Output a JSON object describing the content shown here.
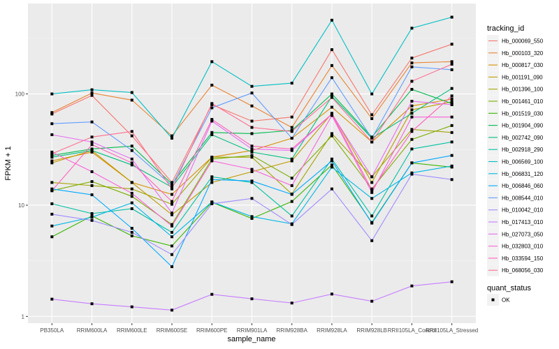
{
  "chart_data": {
    "type": "line",
    "title": "",
    "xlabel": "sample_name",
    "ylabel": "FPKM + 1",
    "yscale": "log10",
    "ylim": [
      0.87,
      650
    ],
    "yticks": [
      1,
      10,
      100
    ],
    "ytick_labels": [
      "1",
      "10",
      "100"
    ],
    "grid": true,
    "legend_position": "right",
    "categories": [
      "PB350LA",
      "RRIM600LA",
      "RRIM600LE",
      "RRIM600SE",
      "RRIM600PE",
      "RRIM901LA",
      "RRIM928BA",
      "RRIM928LA",
      "RRIM928LB",
      "RRII105LA_Control",
      "RRII105LA_Stressed"
    ],
    "legend_color_title": "tracking_id",
    "legend_shape_title": "quant_status",
    "legend_shape_items": [
      "OK"
    ],
    "series": [
      {
        "name": "Hb_000069_550",
        "color": "#F8766D",
        "values": [
          66,
          97,
          42,
          16,
          80,
          57,
          62,
          250,
          65,
          210,
          280
        ]
      },
      {
        "name": "Hb_000103_320",
        "color": "#EA8331",
        "values": [
          68,
          102,
          88,
          42,
          120,
          78,
          50,
          180,
          60,
          190,
          195
        ]
      },
      {
        "name": "Hb_000817_030",
        "color": "#D89000",
        "values": [
          25,
          30,
          16,
          12.5,
          27,
          31,
          40,
          76,
          37,
          78,
          90
        ]
      },
      {
        "name": "Hb_001191_090",
        "color": "#C09B00",
        "values": [
          24,
          31,
          16,
          8.2,
          16,
          20,
          25,
          67,
          16,
          72,
          85
        ]
      },
      {
        "name": "Hb_001396_100",
        "color": "#A3A500",
        "values": [
          16,
          15,
          14,
          10.2,
          27,
          27,
          12.6,
          44,
          18,
          48,
          45
        ]
      },
      {
        "name": "Hb_001461_010",
        "color": "#7CAE00",
        "values": [
          13.5,
          16.3,
          12,
          6.7,
          26,
          28,
          17.5,
          42,
          14,
          39,
          52
        ]
      },
      {
        "name": "Hb_001519_030",
        "color": "#39B600",
        "values": [
          5.2,
          8,
          5.3,
          4.3,
          10.6,
          7.6,
          10.8,
          23,
          7,
          24,
          22
        ]
      },
      {
        "name": "Hb_001904_090",
        "color": "#00BB4E",
        "values": [
          28,
          32,
          34,
          15.5,
          45,
          44,
          47,
          100,
          41,
          110,
          82
        ]
      },
      {
        "name": "Hb_002742_090",
        "color": "#00BF7D",
        "values": [
          27,
          31,
          23,
          14.5,
          43,
          30,
          26,
          95,
          40,
          67,
          112
        ]
      },
      {
        "name": "Hb_002918_290",
        "color": "#00C1A3",
        "values": [
          10.3,
          8.4,
          9.3,
          5.7,
          18,
          16,
          8,
          26,
          8,
          32,
          37
        ]
      },
      {
        "name": "Hb_006569_100",
        "color": "#00BFC4",
        "values": [
          100,
          109,
          103,
          40,
          195,
          117,
          125,
          460,
          100,
          390,
          490
        ]
      },
      {
        "name": "Hb_006831_120",
        "color": "#00B8E5",
        "values": [
          6.5,
          7.8,
          10.5,
          5.2,
          10.7,
          7.9,
          6.8,
          22,
          11.5,
          19.5,
          22.5
        ]
      },
      {
        "name": "Hb_006846_060",
        "color": "#00A9FF",
        "values": [
          14,
          12.4,
          6.2,
          2.8,
          17,
          16.5,
          12.5,
          25,
          6.9,
          24,
          28
        ]
      },
      {
        "name": "Hb_008544_010",
        "color": "#619CFF",
        "values": [
          54,
          56,
          31,
          15,
          75,
          102,
          40,
          140,
          40,
          175,
          165
        ]
      },
      {
        "name": "Hb_010042_010",
        "color": "#9F8CFF",
        "values": [
          8.3,
          7.3,
          5.7,
          3.6,
          10.3,
          11.5,
          6.7,
          14,
          4.8,
          19,
          17
        ]
      },
      {
        "name": "Hb_017413_010",
        "color": "#C77CFF",
        "values": [
          1.43,
          1.3,
          1.22,
          1.14,
          1.58,
          1.44,
          1.32,
          1.59,
          1.37,
          1.88,
          2.05
        ]
      },
      {
        "name": "Hb_027073_050",
        "color": "#E76BF3",
        "values": [
          43,
          37,
          26,
          8.5,
          57,
          32,
          31,
          66,
          18,
          86,
          80
        ]
      },
      {
        "name": "Hb_032803_010",
        "color": "#FA62DB",
        "values": [
          30,
          20,
          12.8,
          6.5,
          25,
          21,
          15,
          64,
          13,
          62,
          62
        ]
      },
      {
        "name": "Hb_033594_150",
        "color": "#FF62BC",
        "values": [
          13.5,
          35,
          24,
          10.8,
          59,
          34,
          32,
          66,
          13.7,
          46,
          96
        ]
      },
      {
        "name": "Hb_068056_030",
        "color": "#FF6C91",
        "values": [
          29,
          41,
          46,
          14,
          82,
          50,
          46,
          93,
          37,
          130,
          185
        ]
      }
    ]
  }
}
